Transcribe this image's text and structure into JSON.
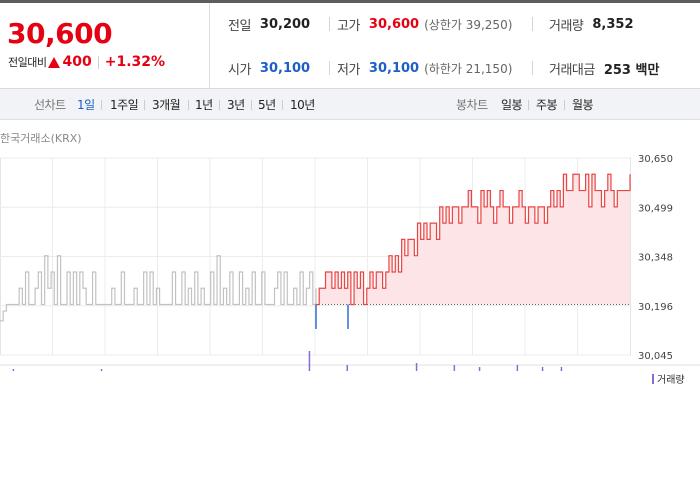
{
  "summary": {
    "current_price": "30,600",
    "change_label": "전일대비",
    "change_value": "400",
    "change_percent": "+1.32%",
    "rows": {
      "prev_close": {
        "label": "전일",
        "value": "30,200"
      },
      "high": {
        "label": "고가",
        "value": "30,600",
        "sub": "(상한가 39,250)"
      },
      "volume": {
        "label": "거래량",
        "value": "8,352"
      },
      "open": {
        "label": "시가",
        "value": "30,100"
      },
      "low": {
        "label": "저가",
        "value": "30,100",
        "sub": "(하한가 21,150)"
      },
      "amount": {
        "label": "거래대금",
        "value": "253 백만"
      }
    },
    "colors": {
      "up": "#e50012",
      "down": "#1d5fc6"
    }
  },
  "tabs": {
    "line_label": "선차트",
    "line_items": [
      "1일",
      "1주일",
      "3개월",
      "1년",
      "3년",
      "5년",
      "10년"
    ],
    "active": "1일",
    "candle_label": "봉차트",
    "candle_items": [
      "일봉",
      "주봉",
      "월봉"
    ]
  },
  "exchange_label": "한국거래소(KRX)",
  "volume_legend": "거래량",
  "chart_data": {
    "type": "line",
    "x": [
      0,
      1,
      2,
      3,
      4,
      5,
      6,
      7,
      8,
      9,
      10,
      11,
      12,
      13,
      14,
      15,
      16,
      17,
      18,
      19,
      20,
      21,
      22,
      23,
      24,
      25,
      26,
      27,
      28,
      29,
      30,
      31,
      32,
      33,
      34,
      35,
      36,
      37,
      38,
      39,
      40,
      41,
      42,
      43,
      44,
      45,
      46,
      47,
      48,
      49,
      50,
      51,
      52,
      53,
      54,
      55,
      56,
      57,
      58,
      59,
      60,
      61,
      62,
      63,
      64,
      65,
      66,
      67,
      68,
      69,
      70,
      71,
      72,
      73,
      74,
      75,
      76,
      77,
      78,
      79,
      80,
      81,
      82,
      83,
      84,
      85,
      86,
      87,
      88,
      89,
      90,
      91,
      92,
      93,
      94,
      95,
      96,
      97,
      98,
      99
    ],
    "series": [
      {
        "values": [
          30150,
          30180,
          30200,
          30200,
          30200,
          30200,
          30250,
          30200,
          30300,
          30200,
          30200,
          30250,
          30300,
          30200,
          30350,
          30250,
          30300,
          30200,
          30350,
          30200,
          30200,
          30300,
          30200,
          30300,
          30200,
          30300,
          30250,
          30200,
          30200,
          30300,
          30200,
          30200,
          30200,
          30200,
          30200,
          30250,
          30200,
          30200,
          30300,
          30200,
          30200,
          30200,
          30250,
          30200,
          30200,
          30300,
          30200,
          30300,
          30200,
          30250,
          30200,
          30200,
          30200,
          30200,
          30300,
          30200,
          30200,
          30300,
          30200,
          30250,
          30200,
          30300,
          30200,
          30250,
          30200,
          30200,
          30300,
          30200,
          30350,
          30200,
          30250,
          30200,
          30300,
          30200,
          30200,
          30300,
          30200,
          30250,
          30200,
          30300,
          30200,
          30200,
          30300,
          30200,
          30200,
          30200,
          30250,
          30300,
          30200,
          30300,
          30200,
          30200,
          30250,
          30200,
          30300,
          30200,
          30250,
          30300,
          30200,
          30250
        ]
      },
      {
        "values": [
          30200,
          30250,
          30250,
          30300,
          30300,
          30250,
          30300,
          30250,
          30300,
          30250,
          30300,
          30200,
          30300,
          30250,
          30300,
          30200,
          30250,
          30300,
          30250,
          30300,
          30300,
          30250,
          30300,
          30350,
          30300,
          30350,
          30300,
          30400,
          30350,
          30400,
          30400,
          30350,
          30450,
          30400,
          30450,
          30400,
          30450,
          30450,
          30400,
          30500,
          30450,
          30500,
          30450,
          30500,
          30500,
          30450,
          30500,
          30500,
          30550,
          30500,
          30500,
          30450,
          30550,
          30500,
          30550,
          30500,
          30450,
          30500,
          30550,
          30500,
          30500,
          30450,
          30500,
          30500,
          30550,
          30500,
          30450,
          30500,
          30500,
          30450,
          30500,
          30500,
          30450,
          30500,
          30550,
          30500,
          30550,
          30500,
          30600,
          30550,
          30550,
          30600,
          30600,
          30550,
          30550,
          30600,
          30500,
          30600,
          30550,
          30550,
          30500,
          30550,
          30600,
          30550,
          30500,
          30550,
          30550,
          30550,
          30550,
          30600
        ]
      }
    ],
    "y_ticks": [
      "30,650",
      "30,499",
      "30,348",
      "30,196",
      "30,045"
    ],
    "ylim": [
      30045,
      30650
    ],
    "reference_price": 30200,
    "grid": true,
    "colors": {
      "prev_session": "#c2c2c2",
      "today_up": "#e84545",
      "today_down": "#2f6fd0",
      "fill": "#fde4e6",
      "volume": "#8a6cd0"
    },
    "volume_bars": [
      {
        "x": 0.02,
        "h": 1
      },
      {
        "x": 0.16,
        "h": 1
      },
      {
        "x": 0.49,
        "h": 10
      },
      {
        "x": 0.55,
        "h": 3
      },
      {
        "x": 0.66,
        "h": 4
      },
      {
        "x": 0.72,
        "h": 3
      },
      {
        "x": 0.76,
        "h": 2
      },
      {
        "x": 0.82,
        "h": 3
      },
      {
        "x": 0.86,
        "h": 2
      },
      {
        "x": 0.89,
        "h": 2
      }
    ]
  }
}
